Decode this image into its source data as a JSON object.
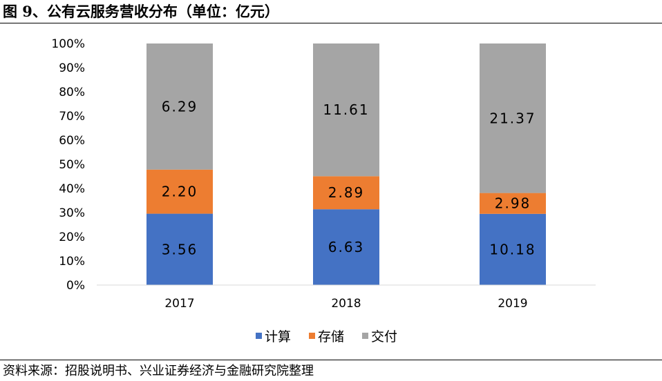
{
  "figure": {
    "title": "图 9、公有云服务营收分布（单位：亿元）",
    "source": "资料来源：招股说明书、兴业证券经济与金融研究院整理"
  },
  "chart_data": {
    "type": "bar",
    "stacked": "percent",
    "categories": [
      "2017",
      "2018",
      "2019"
    ],
    "series": [
      {
        "name": "计算",
        "values": [
          3.56,
          6.63,
          10.18
        ],
        "labels": [
          "3.56",
          "6.63",
          "10.18"
        ],
        "color": "#4472C4"
      },
      {
        "name": "存储",
        "values": [
          2.2,
          2.89,
          2.98
        ],
        "labels": [
          "2.20",
          "2.89",
          "2.98"
        ],
        "color": "#ED7D31"
      },
      {
        "name": "交付",
        "values": [
          6.29,
          11.61,
          21.37
        ],
        "labels": [
          "6.29",
          "11.61",
          "21.37"
        ],
        "color": "#A5A5A5"
      }
    ],
    "yticks": [
      "0%",
      "10%",
      "20%",
      "30%",
      "40%",
      "50%",
      "60%",
      "70%",
      "80%",
      "90%",
      "100%"
    ],
    "ylim": [
      0,
      100
    ],
    "grid": false,
    "legend": "bottom"
  }
}
